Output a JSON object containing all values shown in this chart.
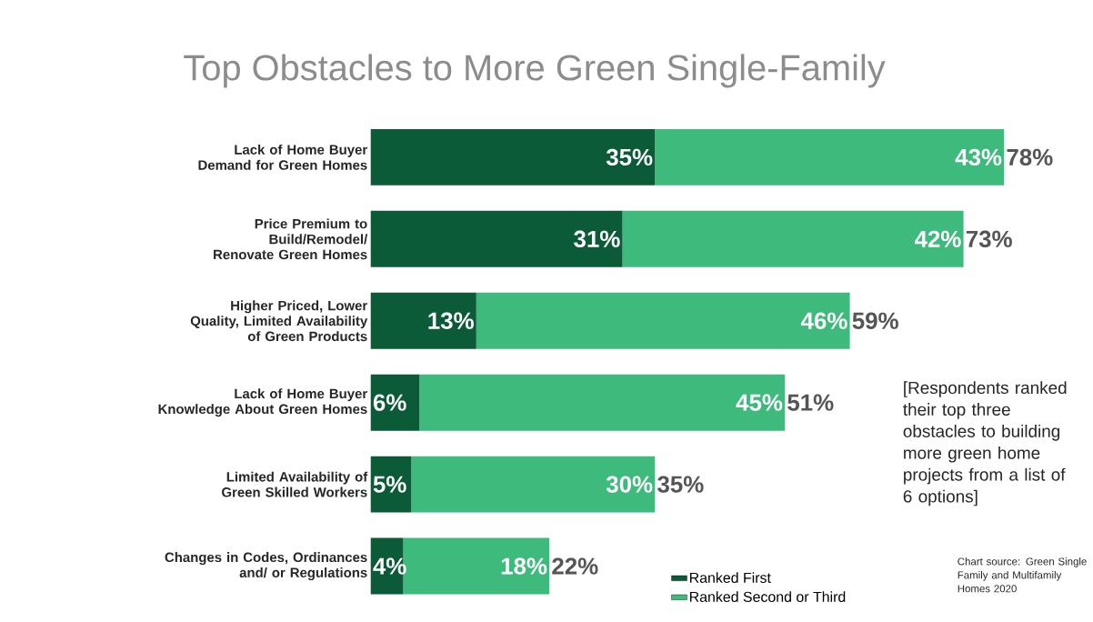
{
  "chart_data": {
    "type": "bar",
    "orientation": "horizontal",
    "stacked": true,
    "title": "Top Obstacles to More Green Single-Family",
    "categories": [
      "Lack of Home Buyer Demand for Green Homes",
      "Price Premium to Build/Remodel/ Renovate Green Homes",
      "Higher Priced, Lower Quality, Limited Availability of Green Products",
      "Lack of Home Buyer Knowledge About Green Homes",
      "Limited Availability of Green Skilled Workers",
      "Changes in Codes, Ordinances and/ or Regulations"
    ],
    "series": [
      {
        "name": "Ranked First",
        "color": "#0b5a38",
        "values": [
          35,
          31,
          13,
          6,
          5,
          4
        ],
        "value_labels": [
          "35%",
          "31%",
          "13%",
          "6%",
          "5%",
          "4%"
        ]
      },
      {
        "name": "Ranked Second or Third",
        "color": "#3dba7c",
        "values": [
          43,
          42,
          46,
          45,
          30,
          18
        ],
        "value_labels": [
          "43%",
          "42%",
          "46%",
          "45%",
          "30%",
          "18%"
        ]
      }
    ],
    "totals": [
      "78%",
      "73%",
      "59%",
      "51%",
      "35%",
      "22%"
    ],
    "legend": "bottom right",
    "annotations": [
      "[Respondents ranked their top three obstacles to building more green home projects from  a list of 6 options]",
      "Chart source: Green Single Family and Multifamily Homes 2020"
    ]
  }
}
